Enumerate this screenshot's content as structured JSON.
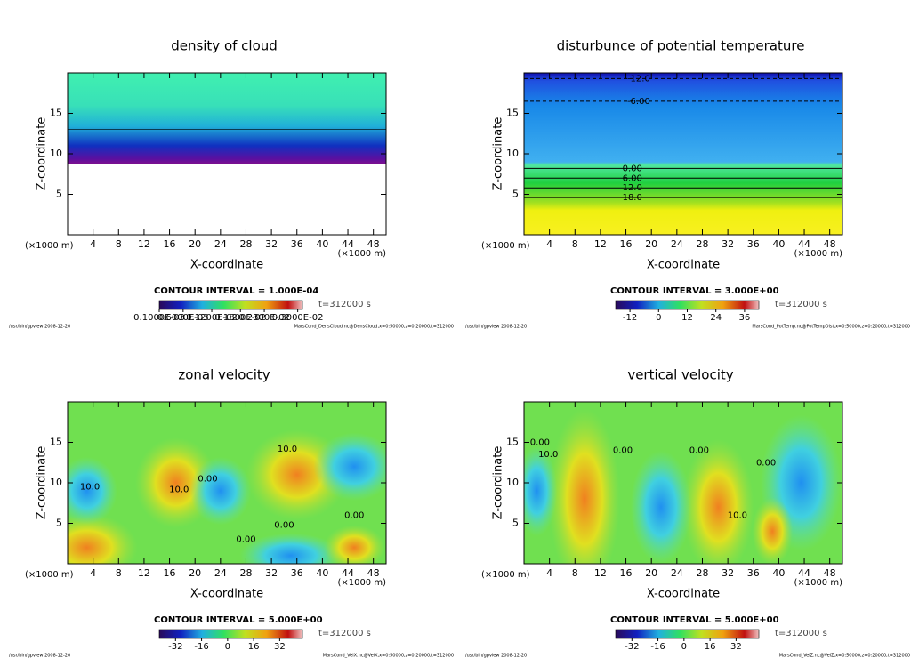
{
  "chart_data": [
    {
      "type": "contour",
      "title": "density of cloud",
      "xlabel": "X-coordinate",
      "ylabel": "Z-coordinate",
      "xunit": "(×1000 m)",
      "xlim": [
        0,
        50
      ],
      "xticks": [
        4,
        8,
        12,
        16,
        20,
        24,
        28,
        32,
        36,
        40,
        44,
        48
      ],
      "ylim": [
        0,
        20
      ],
      "yticks": [
        5,
        10,
        15
      ],
      "contour_interval": "CONTOUR INTERVAL = 1.000E-04",
      "time": "t=312000 s",
      "clim": [
        0.0001,
        0.0031
      ],
      "cticks": [
        {
          "value": 0.0001,
          "label": "0.1000E-03"
        },
        {
          "value": 0.0006,
          "label": "0.6000E-03"
        },
        {
          "value": 0.0012,
          "label": "0.1200E-02"
        },
        {
          "value": 0.0018,
          "label": "0.1800E-02"
        },
        {
          "value": 0.0023,
          "label": "0.2300E-02"
        },
        {
          "value": 0.003,
          "label": "0.3000E-02"
        }
      ],
      "footer_left": "/usr/bin/gpview  2008-12-20",
      "footer_right": "MarsCond_DensCloud.nc@DensCloud,x=0:50000,z=0:20000,t=312000",
      "annotations": []
    },
    {
      "type": "contour",
      "title": "disturbunce of potential temperature",
      "xlabel": "X-coordinate",
      "ylabel": "Z-coordinate",
      "xunit": "(×1000 m)",
      "xlim": [
        0,
        50
      ],
      "xticks": [
        4,
        8,
        12,
        16,
        20,
        24,
        28,
        32,
        36,
        40,
        44,
        48
      ],
      "ylim": [
        0,
        20
      ],
      "yticks": [
        5,
        10,
        15
      ],
      "contour_interval": "CONTOUR INTERVAL = 3.000E+00",
      "time": "t=312000 s",
      "clim": [
        -18,
        42
      ],
      "cticks": [
        -12,
        0,
        12,
        24,
        36
      ],
      "footer_left": "/usr/bin/gpview  2008-12-20",
      "footer_right": "MarsCond_PotTemp.nc@PotTempDist,x=0:50000,z=0:20000,t=312000",
      "annotations": [
        {
          "text": "-12.0",
          "x": 18,
          "z": 19.3
        },
        {
          "text": "-6.00",
          "x": 18,
          "z": 16.5
        },
        {
          "text": "0.00",
          "x": 17,
          "z": 8.2
        },
        {
          "text": "6.00",
          "x": 17,
          "z": 7.0
        },
        {
          "text": "12.0",
          "x": 17,
          "z": 5.8
        },
        {
          "text": "18.0",
          "x": 17,
          "z": 4.6
        }
      ]
    },
    {
      "type": "contour",
      "title": "zonal velocity",
      "xlabel": "X-coordinate",
      "ylabel": "Z-coordinate",
      "xunit": "(×1000 m)",
      "xlim": [
        0,
        50
      ],
      "xticks": [
        4,
        8,
        12,
        16,
        20,
        24,
        28,
        32,
        36,
        40,
        44,
        48
      ],
      "ylim": [
        0,
        20
      ],
      "yticks": [
        5,
        10,
        15
      ],
      "contour_interval": "CONTOUR INTERVAL = 5.000E+00",
      "time": "t=312000 s",
      "clim": [
        -42,
        46
      ],
      "cticks": [
        -32,
        -16,
        0,
        16,
        32
      ],
      "footer_left": "/usr/bin/gpview  2008-12-20",
      "footer_right": "MarsCond_VelX.nc@VelX,x=0:50000,z=0:20000,t=312000",
      "annotations": [
        {
          "text": "10.0",
          "x": 3.5,
          "z": 9.5
        },
        {
          "text": "10.0",
          "x": 17.5,
          "z": 9.2
        },
        {
          "text": "0.00",
          "x": 22,
          "z": 10.5
        },
        {
          "text": "10.0",
          "x": 34.5,
          "z": 14.2
        },
        {
          "text": "0.00",
          "x": 45,
          "z": 6.0
        },
        {
          "text": "0.00",
          "x": 34,
          "z": 4.8
        },
        {
          "text": "0.00",
          "x": 28,
          "z": 3.0
        }
      ]
    },
    {
      "type": "contour",
      "title": "vertical velocity",
      "xlabel": "X-coordinate",
      "ylabel": "Z-coordinate",
      "xunit": "(×1000 m)",
      "xlim": [
        0,
        50
      ],
      "xticks": [
        4,
        8,
        12,
        16,
        20,
        24,
        28,
        32,
        36,
        40,
        44,
        48
      ],
      "ylim": [
        0,
        20
      ],
      "yticks": [
        5,
        10,
        15
      ],
      "contour_interval": "CONTOUR INTERVAL = 5.000E+00",
      "time": "t=312000 s",
      "clim": [
        -42,
        46
      ],
      "cticks": [
        -32,
        -16,
        0,
        16,
        32
      ],
      "footer_left": "/usr/bin/gpview  2008-12-20",
      "footer_right": "MarsCond_VelZ.nc@VelZ,x=0:50000,z=0:20000,t=312000",
      "annotations": [
        {
          "text": "0.00",
          "x": 2.5,
          "z": 15
        },
        {
          "text": "10.0",
          "x": 3.8,
          "z": 13.5
        },
        {
          "text": "0.00",
          "x": 15.5,
          "z": 14
        },
        {
          "text": "0.00",
          "x": 27.5,
          "z": 14
        },
        {
          "text": "10.0",
          "x": 33.5,
          "z": 6
        },
        {
          "text": "0.00",
          "x": 38,
          "z": 12.5
        }
      ]
    }
  ]
}
